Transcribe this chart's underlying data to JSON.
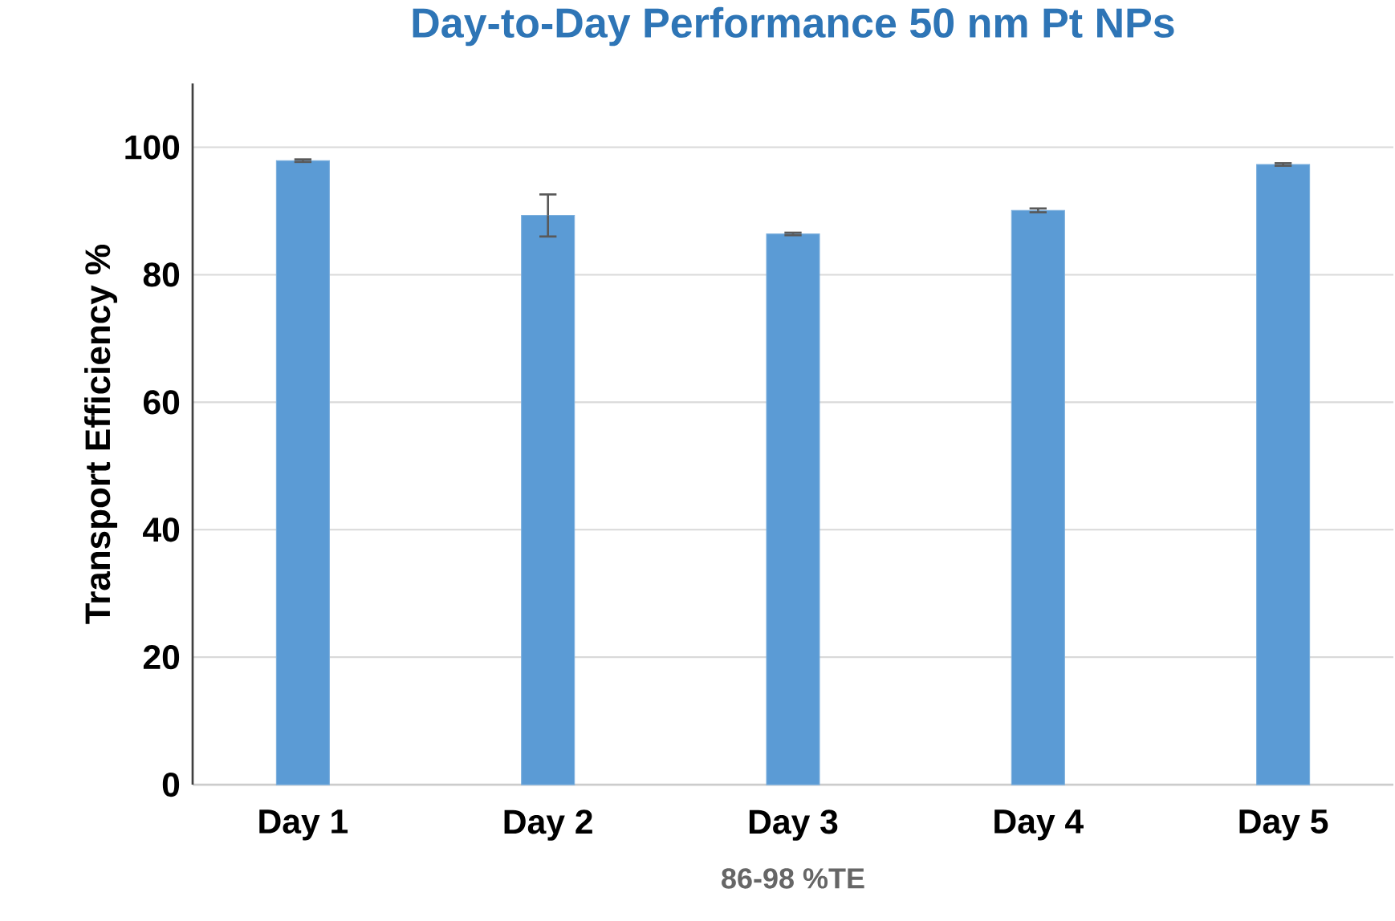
{
  "chart_data": {
    "type": "bar",
    "title": "Day-to-Day Performance 50 nm Pt NPs",
    "xlabel": "86-98 %TE",
    "ylabel": "Transport Efficiency %",
    "categories": [
      "Day 1",
      "Day 2",
      "Day 3",
      "Day 4",
      "Day 5"
    ],
    "values": [
      97.9,
      89.3,
      86.4,
      90.1,
      97.3
    ],
    "errors": [
      0.2,
      3.3,
      0.2,
      0.3,
      0.2
    ],
    "color": "#5b9bd5",
    "ylim": [
      0,
      110
    ],
    "yticks": [
      0,
      20,
      40,
      60,
      80,
      100
    ],
    "grid": "y"
  }
}
